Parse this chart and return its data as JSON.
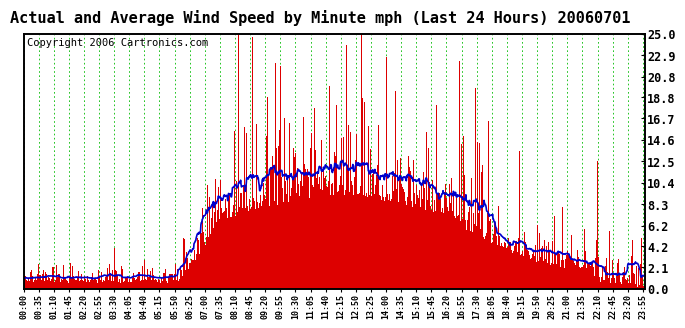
{
  "title": "Actual and Average Wind Speed by Minute mph (Last 24 Hours) 20060701",
  "copyright": "Copyright 2006 Cartronics.com",
  "ylim": [
    0.0,
    25.0
  ],
  "yticks": [
    0.0,
    2.1,
    4.2,
    6.2,
    8.3,
    10.4,
    12.5,
    14.6,
    16.7,
    18.8,
    20.8,
    22.9,
    25.0
  ],
  "bar_color": "#dd0000",
  "line_color": "#0000cc",
  "bg_color": "#ffffff",
  "plot_bg_color": "#ffffff",
  "grid_color": "#00bb00",
  "title_fontsize": 11,
  "copyright_fontsize": 7.5,
  "tick_labels": [
    "00:00",
    "00:35",
    "01:10",
    "01:45",
    "02:20",
    "02:55",
    "03:30",
    "04:05",
    "04:40",
    "05:15",
    "05:50",
    "06:25",
    "07:00",
    "07:35",
    "08:10",
    "08:45",
    "09:20",
    "09:55",
    "10:30",
    "11:05",
    "11:40",
    "12:15",
    "12:50",
    "13:25",
    "14:00",
    "14:35",
    "15:10",
    "15:45",
    "16:20",
    "16:55",
    "17:30",
    "18:05",
    "18:40",
    "19:15",
    "19:50",
    "20:25",
    "21:00",
    "21:35",
    "22:10",
    "22:45",
    "23:20",
    "23:55"
  ]
}
